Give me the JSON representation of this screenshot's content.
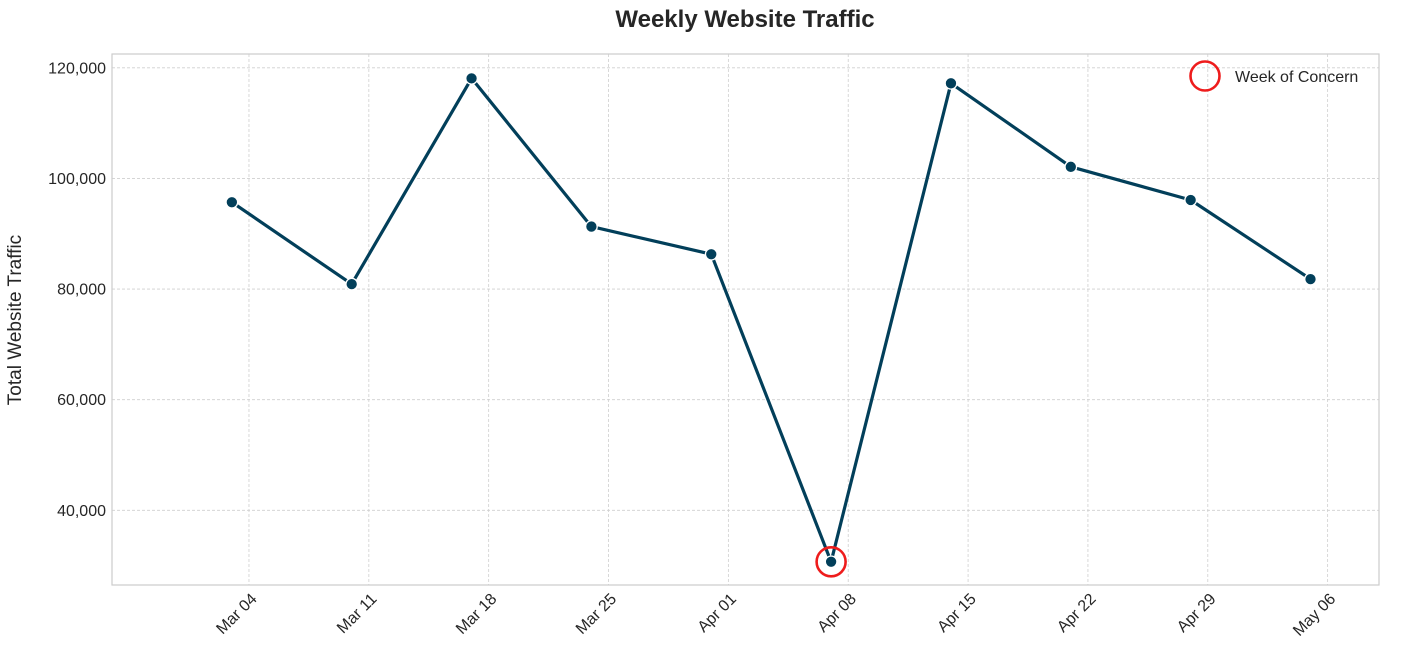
{
  "chart_data": {
    "type": "line",
    "title": "Weekly Website Traffic",
    "xlabel": "",
    "ylabel": "Total Website Traffic",
    "x_ticks": [
      "2024-03-04",
      "2024-03-11",
      "2024-03-18",
      "2024-03-25",
      "2024-04-01",
      "2024-04-08",
      "2024-04-15",
      "2024-04-22",
      "2024-04-29",
      "2024-05-06"
    ],
    "x_tick_labels": [
      "Mar 04",
      "Mar 11",
      "Mar 18",
      "Mar 25",
      "Apr 01",
      "Apr 08",
      "Apr 15",
      "Apr 22",
      "Apr 29",
      "May 06"
    ],
    "y_ticks": [
      40000,
      60000,
      80000,
      100000,
      120000
    ],
    "y_tick_labels": [
      "40,000",
      "60,000",
      "80,000",
      "100,000",
      "120,000"
    ],
    "xlim": [
      "2024-02-25",
      "2024-05-09"
    ],
    "ylim": [
      26500,
      122500
    ],
    "grid": true,
    "legend_position": "top-right",
    "series": [
      {
        "x": [
          "2024-03-03",
          "2024-03-10",
          "2024-03-17",
          "2024-03-24",
          "2024-03-31",
          "2024-04-07",
          "2024-04-14",
          "2024-04-21",
          "2024-04-28",
          "2024-05-05"
        ],
        "values": [
          95700,
          80900,
          118100,
          91300,
          86300,
          30700,
          117200,
          102100,
          96100,
          81800
        ],
        "color": "#023f5a"
      }
    ],
    "highlight": {
      "label": "Week of Concern",
      "x": "2024-04-07",
      "y": 30700,
      "color": "#ee1c1c"
    }
  }
}
